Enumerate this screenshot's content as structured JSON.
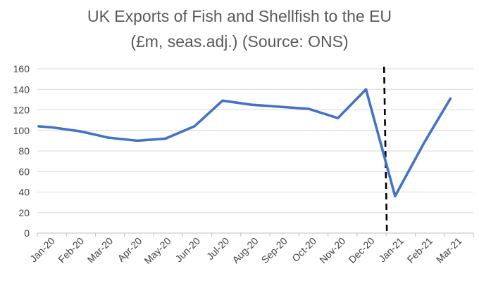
{
  "chart_data": {
    "type": "line",
    "title": "UK Exports of Fish and Shellfish to the EU",
    "subtitle": "(£m, seas.adj.) (Source: ONS)",
    "xlabel": "",
    "ylabel": "",
    "categories": [
      "Jan-20",
      "Feb-20",
      "Mar-20",
      "Apr-20",
      "May-20",
      "Jun-20",
      "Jul-20",
      "Aug-20",
      "Sep-20",
      "Oct-20",
      "Nov-20",
      "Dec-20",
      "Jan-21",
      "Feb-21",
      "Mar-21"
    ],
    "x": [
      "2020-01-01",
      "2020-01-15",
      "2020-02-15",
      "2020-03-15",
      "2020-04-15",
      "2020-05-15",
      "2020-06-15",
      "2020-07-15",
      "2020-08-15",
      "2020-09-15",
      "2020-10-15",
      "2020-11-15",
      "2020-12-15",
      "2021-01-15",
      "2021-02-15",
      "2021-03-15"
    ],
    "series": [
      {
        "name": "",
        "color": "#4472C4",
        "values": [
          104,
          103,
          99,
          93,
          90,
          92,
          104,
          129,
          125,
          123,
          121,
          112,
          140,
          36,
          88,
          131
        ]
      }
    ],
    "ylim": [
      0,
      160
    ],
    "yticks": [
      0,
      20,
      40,
      60,
      80,
      100,
      120,
      140,
      160
    ],
    "vertical_marker": {
      "position": "between Dec-20 and Jan-21",
      "style": "dashed",
      "color": "#000000"
    },
    "grid": true,
    "grid_color": "#D9D9D9",
    "legend": "none"
  }
}
